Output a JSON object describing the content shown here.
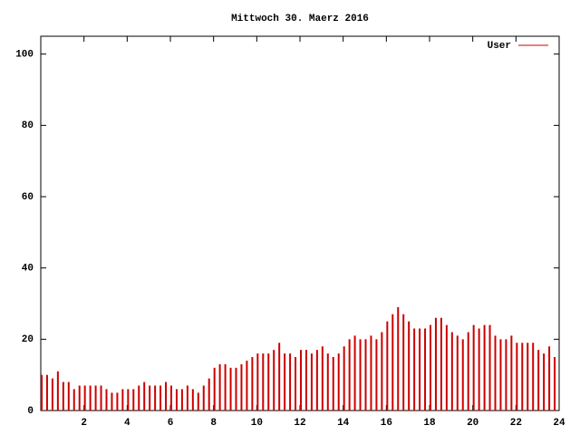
{
  "chart_data": {
    "type": "impulse",
    "title": "Mittwoch 30. Maerz 2016",
    "x": [
      0,
      0.25,
      0.5,
      0.75,
      1,
      1.25,
      1.5,
      1.75,
      2,
      2.25,
      2.5,
      2.75,
      3,
      3.25,
      3.5,
      3.75,
      4,
      4.25,
      4.5,
      4.75,
      5,
      5.25,
      5.5,
      5.75,
      6,
      6.25,
      6.5,
      6.75,
      7,
      7.25,
      7.5,
      7.75,
      8,
      8.25,
      8.5,
      8.75,
      9,
      9.25,
      9.5,
      9.75,
      10,
      10.25,
      10.5,
      10.75,
      11,
      11.25,
      11.5,
      11.75,
      12,
      12.25,
      12.5,
      12.75,
      13,
      13.25,
      13.5,
      13.75,
      14,
      14.25,
      14.5,
      14.75,
      15,
      15.25,
      15.5,
      15.75,
      16,
      16.25,
      16.5,
      16.75,
      17,
      17.25,
      17.5,
      17.75,
      18,
      18.25,
      18.5,
      18.75,
      19,
      19.25,
      19.5,
      19.75,
      20,
      20.25,
      20.5,
      20.75,
      21,
      21.25,
      21.5,
      21.75,
      22,
      22.25,
      22.5,
      22.75,
      23,
      23.25,
      23.5,
      23.75
    ],
    "series": [
      {
        "name": "User",
        "color": "#cc0000",
        "values": [
          10,
          10,
          9,
          11,
          8,
          8,
          6,
          7,
          7,
          7,
          7,
          7,
          6,
          5,
          5,
          6,
          6,
          6,
          7,
          8,
          7,
          7,
          7,
          8,
          7,
          6,
          6,
          7,
          6,
          5,
          7,
          9,
          12,
          13,
          13,
          12,
          12,
          13,
          14,
          15,
          16,
          16,
          16,
          17,
          19,
          16,
          16,
          15,
          17,
          17,
          16,
          17,
          18,
          16,
          15,
          16,
          18,
          20,
          21,
          20,
          20,
          21,
          20,
          22,
          25,
          27,
          29,
          27,
          25,
          23,
          23,
          23,
          24,
          26,
          26,
          24,
          22,
          21,
          20,
          22,
          24,
          23,
          24,
          24,
          21,
          20,
          20,
          21,
          19,
          19,
          19,
          19,
          17,
          16,
          18,
          15
        ]
      }
    ],
    "xlim": [
      0,
      24
    ],
    "xticks": [
      2,
      4,
      6,
      8,
      10,
      12,
      14,
      16,
      18,
      20,
      22,
      24
    ],
    "ylim": [
      0,
      105
    ],
    "yticks": [
      0,
      20,
      40,
      60,
      80,
      100
    ],
    "legend": "top-right"
  }
}
